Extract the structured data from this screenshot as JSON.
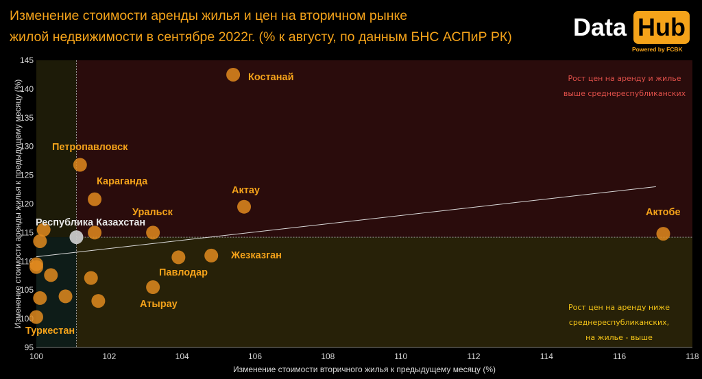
{
  "header": {
    "title_line1": "Изменение стоимости аренды жилья и цен на вторичном рынке",
    "title_line2": "жилой недвижимости в сентябре 2022г. (% к августу, по данным БНС АСПиР РК)"
  },
  "logo": {
    "word1": "Data",
    "word2": "Hub",
    "tagline": "Powered by FCBK"
  },
  "colors": {
    "background": "#000000",
    "accent": "#f5a31a",
    "point": "#e08a1e",
    "top_zone": "#2a0c0c",
    "bottom_zone": "#272108",
    "left_zone": "#0e1c18",
    "zone_top_text": "#e0504a",
    "zone_bottom_text": "#f5c518",
    "trend": "#d9d9d9",
    "kz_point": "#c8c8c8"
  },
  "chart_data": {
    "type": "scatter",
    "xlabel": "Изменение стоимости вторичного жилья к предыдущему месяцу (%)",
    "ylabel": "Изменение стоимости аренды жилья к предыдущему месяцу (%)",
    "xlim": [
      100,
      118
    ],
    "ylim": [
      95,
      145
    ],
    "xticks": [
      "100",
      "102",
      "104",
      "106",
      "108",
      "110",
      "112",
      "114",
      "116",
      "118"
    ],
    "yticks": [
      "95",
      "100",
      "105",
      "110",
      "115",
      "120",
      "125",
      "130",
      "135",
      "140",
      "145"
    ],
    "reference": {
      "x": 101.1,
      "y": 114.2
    },
    "trend": {
      "x1": 100,
      "y1": 110.8,
      "x2": 117.0,
      "y2": 123
    },
    "grid": false,
    "points": [
      {
        "label": "Костанай",
        "x": 105.4,
        "y": 142.5
      },
      {
        "label": "Петропавловск",
        "x": 101.2,
        "y": 126.8
      },
      {
        "label": "Караганда",
        "x": 101.6,
        "y": 120.8
      },
      {
        "label": "Актау",
        "x": 105.7,
        "y": 119.5
      },
      {
        "label": "Уральск",
        "x": 103.2,
        "y": 115.0
      },
      {
        "label": "Актобе",
        "x": 117.2,
        "y": 114.8
      },
      {
        "label": "Республика Казахстан",
        "x": 101.1,
        "y": 114.2,
        "highlight": true
      },
      {
        "label": "Жезказган",
        "x": 104.8,
        "y": 111.0
      },
      {
        "label": "Павлодар",
        "x": 103.9,
        "y": 110.7
      },
      {
        "label": "Атырау",
        "x": 103.2,
        "y": 105.5
      },
      {
        "label": "Туркестан",
        "x": 100.0,
        "y": 100.3
      },
      {
        "label": "",
        "x": 101.6,
        "y": 115.0
      },
      {
        "label": "",
        "x": 100.2,
        "y": 115.5
      },
      {
        "label": "",
        "x": 100.1,
        "y": 113.5
      },
      {
        "label": "",
        "x": 100.0,
        "y": 109.5
      },
      {
        "label": "",
        "x": 100.0,
        "y": 109.0
      },
      {
        "label": "",
        "x": 100.4,
        "y": 107.6
      },
      {
        "label": "",
        "x": 101.5,
        "y": 107.1
      },
      {
        "label": "",
        "x": 100.1,
        "y": 103.6
      },
      {
        "label": "",
        "x": 100.8,
        "y": 103.9
      },
      {
        "label": "",
        "x": 101.7,
        "y": 103.1
      }
    ],
    "zones": {
      "top_right": [
        "Рост цен на аренду и жилье",
        "выше среднереспубликанских"
      ],
      "bottom_right": [
        "Рост цен на аренду ниже",
        "среднереспубликанских,",
        "на жилье - выше"
      ]
    }
  }
}
